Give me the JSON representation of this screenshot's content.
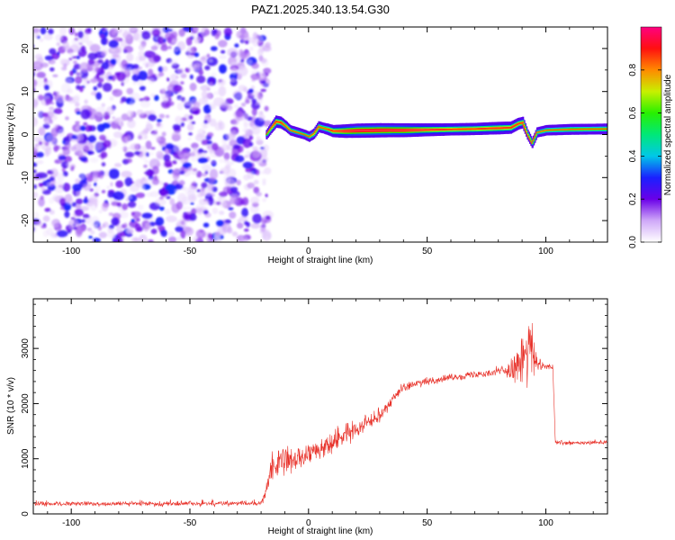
{
  "figure": {
    "title": "PAZ1.2025.340.13.54.G30"
  },
  "chart_data": [
    {
      "type": "heatmap",
      "name": "spectrogram",
      "xlabel": "Height of straight line (km)",
      "ylabel": "Frequency (Hz)",
      "xlim": [
        -116,
        126
      ],
      "ylim": [
        -25,
        25
      ],
      "xticks": [
        -100,
        -50,
        0,
        50,
        100
      ],
      "yticks": [
        -20,
        -10,
        0,
        10,
        20
      ],
      "noise_region_x": [
        -116,
        -18
      ],
      "ridge": {
        "x": [
          -18,
          -16,
          -14,
          -12,
          -10,
          -8,
          -5,
          -2,
          0,
          2,
          4,
          6,
          8,
          10,
          15,
          20,
          30,
          40,
          50,
          60,
          70,
          80,
          85,
          88,
          90,
          92,
          94,
          96,
          100,
          110,
          126
        ],
        "frequency": [
          0.0,
          1.5,
          3.0,
          2.8,
          2.0,
          1.0,
          0.5,
          0.0,
          -0.5,
          0.2,
          1.8,
          1.5,
          1.2,
          0.8,
          0.8,
          0.9,
          1.0,
          1.0,
          1.1,
          1.2,
          1.3,
          1.5,
          1.6,
          2.5,
          2.8,
          0.0,
          -2.0,
          0.5,
          1.0,
          1.2,
          1.3
        ],
        "amplitude": [
          0.2,
          0.35,
          0.6,
          0.55,
          0.4,
          0.3,
          0.3,
          0.25,
          0.3,
          0.35,
          0.45,
          0.4,
          0.5,
          0.6,
          0.8,
          0.9,
          0.9,
          0.85,
          0.7,
          0.6,
          0.6,
          0.65,
          0.6,
          0.55,
          0.5,
          0.3,
          0.25,
          0.3,
          0.35,
          0.4,
          0.4
        ]
      },
      "colorbar": {
        "label": "Normalized spectral amplitude",
        "range": [
          0,
          1
        ],
        "ticks": [
          0.0,
          0.2,
          0.4,
          0.6,
          0.8
        ]
      }
    },
    {
      "type": "line",
      "name": "snr",
      "xlabel": "Height of straight line (km)",
      "ylabel": "SNR (10 * v/v)",
      "xlim": [
        -116,
        126
      ],
      "ylim": [
        0,
        3900
      ],
      "xticks": [
        -100,
        -50,
        0,
        50,
        100
      ],
      "yticks": [
        0,
        1000,
        2000,
        3000
      ],
      "color": "#e8322a",
      "envelope": {
        "x": [
          -116,
          -20,
          -18,
          -16,
          -10,
          0,
          10,
          20,
          30,
          35,
          40,
          50,
          60,
          70,
          80,
          85,
          88,
          90,
          92,
          94,
          96,
          100,
          103,
          104,
          110,
          120,
          126
        ],
        "mean": [
          180,
          190,
          400,
          800,
          950,
          1050,
          1300,
          1550,
          1800,
          2050,
          2300,
          2400,
          2470,
          2530,
          2580,
          2620,
          2700,
          2800,
          2900,
          3000,
          2700,
          2680,
          2650,
          1300,
          1280,
          1290,
          1300
        ],
        "spread": [
          60,
          70,
          200,
          350,
          350,
          350,
          300,
          250,
          200,
          150,
          110,
          100,
          100,
          100,
          120,
          250,
          500,
          700,
          800,
          900,
          250,
          90,
          80,
          60,
          60,
          60,
          60
        ]
      }
    }
  ]
}
